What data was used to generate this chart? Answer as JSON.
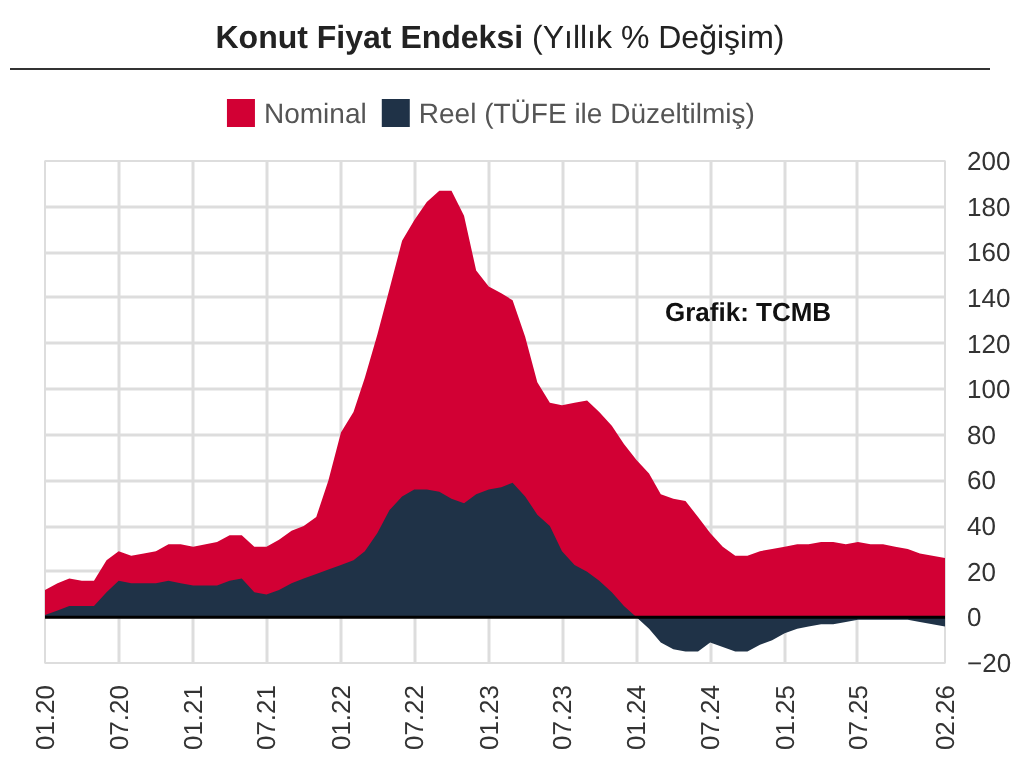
{
  "chart_data": {
    "type": "area",
    "title": "Konut Fiyat Endeksi",
    "subtitle": "(Yıllık % Değişim)",
    "annotations": [
      "Grafik: TCMB"
    ],
    "x": [
      "2020-01",
      "2020-02",
      "2020-03",
      "2020-04",
      "2020-05",
      "2020-06",
      "2020-07",
      "2020-08",
      "2020-09",
      "2020-10",
      "2020-11",
      "2020-12",
      "2021-01",
      "2021-02",
      "2021-03",
      "2021-04",
      "2021-05",
      "2021-06",
      "2021-07",
      "2021-08",
      "2021-09",
      "2021-10",
      "2021-11",
      "2021-12",
      "2022-01",
      "2022-02",
      "2022-03",
      "2022-04",
      "2022-05",
      "2022-06",
      "2022-07",
      "2022-08",
      "2022-09",
      "2022-10",
      "2022-11",
      "2022-12",
      "2023-01",
      "2023-02",
      "2023-03",
      "2023-04",
      "2023-05",
      "2023-06",
      "2023-07",
      "2023-08",
      "2023-09",
      "2023-10",
      "2023-11",
      "2023-12",
      "2024-01",
      "2024-02",
      "2024-03",
      "2024-04",
      "2024-05",
      "2024-06",
      "2024-07",
      "2024-08",
      "2024-09",
      "2024-10",
      "2024-11",
      "2024-12",
      "2025-01",
      "2025-02",
      "2025-03",
      "2025-04",
      "2025-05",
      "2025-06",
      "2025-07",
      "2025-08",
      "2025-09",
      "2025-10",
      "2025-11",
      "2025-12",
      "2026-01",
      "2026-02"
    ],
    "series": [
      {
        "name": "Nominal",
        "color": "#d20034",
        "values": [
          12,
          15,
          17,
          16,
          16,
          25,
          29,
          27,
          28,
          29,
          32,
          32,
          31,
          32,
          33,
          36,
          36,
          31,
          31,
          34,
          38,
          40,
          44,
          60,
          81,
          90,
          105,
          124,
          144,
          165,
          174,
          182,
          187,
          187,
          176,
          152,
          145,
          142,
          139,
          123,
          103,
          94,
          93,
          94,
          95,
          90,
          84,
          76,
          69,
          63,
          54,
          52,
          51,
          44,
          37,
          31,
          27,
          27,
          29,
          30,
          31,
          32,
          32,
          33,
          33,
          32,
          33,
          32,
          32,
          31,
          30,
          28,
          27,
          26
        ]
      },
      {
        "name": "Reel (TÜFE ile Düzeltilmiş)",
        "color": "#1f3247",
        "values": [
          1,
          3,
          5,
          5,
          5,
          11,
          16,
          15,
          15,
          15,
          16,
          15,
          14,
          14,
          14,
          16,
          17,
          11,
          10,
          12,
          15,
          17,
          19,
          21,
          23,
          25,
          29,
          37,
          47,
          53,
          56,
          56,
          55,
          52,
          50,
          54,
          56,
          57,
          59,
          53,
          45,
          40,
          29,
          23,
          20,
          16,
          11,
          5,
          0,
          -5,
          -11,
          -14,
          -15,
          -15,
          -11,
          -13,
          -15,
          -15,
          -12,
          -10,
          -7,
          -5,
          -4,
          -3,
          -3,
          -2,
          -1,
          -1,
          -1,
          -1,
          -1,
          -2,
          -3,
          -4
        ]
      }
    ],
    "xlim": [
      "2020-01",
      "2026-02"
    ],
    "xticks": [
      {
        "value": "2020-01",
        "label": "01.20"
      },
      {
        "value": "2020-07",
        "label": "07.20"
      },
      {
        "value": "2021-01",
        "label": "01.21"
      },
      {
        "value": "2021-07",
        "label": "07.21"
      },
      {
        "value": "2022-01",
        "label": "01.22"
      },
      {
        "value": "2022-07",
        "label": "07.22"
      },
      {
        "value": "2023-01",
        "label": "01.23"
      },
      {
        "value": "2023-07",
        "label": "07.23"
      },
      {
        "value": "2024-01",
        "label": "01.24"
      },
      {
        "value": "2024-07",
        "label": "07.24"
      },
      {
        "value": "2025-01",
        "label": "01.25"
      },
      {
        "value": "2025-07",
        "label": "07.25"
      },
      {
        "value": "2026-02",
        "label": "02.26"
      }
    ],
    "ylim": [
      -20,
      200
    ],
    "yticks": [
      -20,
      0,
      20,
      40,
      60,
      80,
      100,
      120,
      140,
      160,
      180,
      200
    ],
    "ref_lines": [
      {
        "axis": "y",
        "value": 0,
        "color": "#000000"
      }
    ],
    "grid": true,
    "legend": "top"
  }
}
